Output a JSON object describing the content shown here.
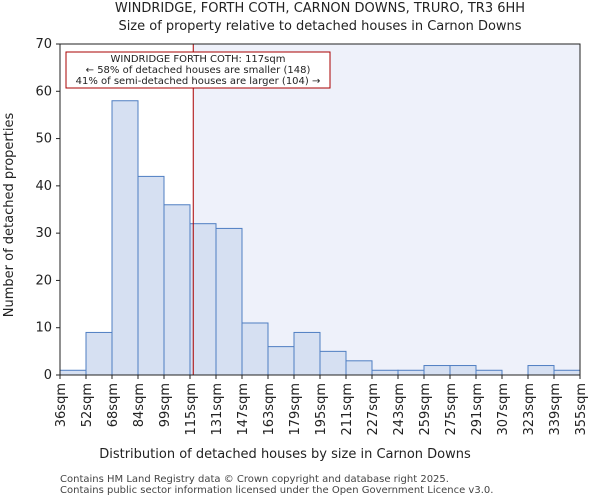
{
  "chart_data": {
    "type": "bar",
    "title_line1": "WINDRIDGE, FORTH COTH, CARNON DOWNS, TRURO, TR3 6HH",
    "title_line2": "Size of property relative to detached houses in Carnon Downs",
    "xlabel": "Distribution of detached houses by size in Carnon Downs",
    "ylabel": "Number of detached properties",
    "ylim": [
      0,
      70
    ],
    "yticks": [
      0,
      10,
      20,
      30,
      40,
      50,
      60,
      70
    ],
    "bin_edges": [
      "36sqm",
      "52sqm",
      "68sqm",
      "84sqm",
      "99sqm",
      "115sqm",
      "131sqm",
      "147sqm",
      "163sqm",
      "179sqm",
      "195sqm",
      "211sqm",
      "227sqm",
      "243sqm",
      "259sqm",
      "275sqm",
      "291sqm",
      "307sqm",
      "323sqm",
      "339sqm",
      "355sqm"
    ],
    "values": [
      1,
      9,
      58,
      42,
      36,
      32,
      31,
      11,
      6,
      9,
      5,
      3,
      1,
      1,
      2,
      2,
      1,
      0,
      2,
      1
    ],
    "property_marker": {
      "value_sqm": 117,
      "bin_position": 5.125
    },
    "annotation": {
      "line1": "WINDRIDGE FORTH COTH: 117sqm",
      "line2": "← 58% of detached houses are smaller (148)",
      "line3": "41% of semi-detached houses are larger (104) →"
    },
    "colors": {
      "bar_fill": "#d6e0f2",
      "bar_stroke": "#4f7ec2",
      "highlight_bg": "#eef1fa",
      "marker": "#aa0000"
    }
  },
  "footer": {
    "line1": "Contains HM Land Registry data © Crown copyright and database right 2025.",
    "line2": "Contains public sector information licensed under the Open Government Licence v3.0."
  }
}
